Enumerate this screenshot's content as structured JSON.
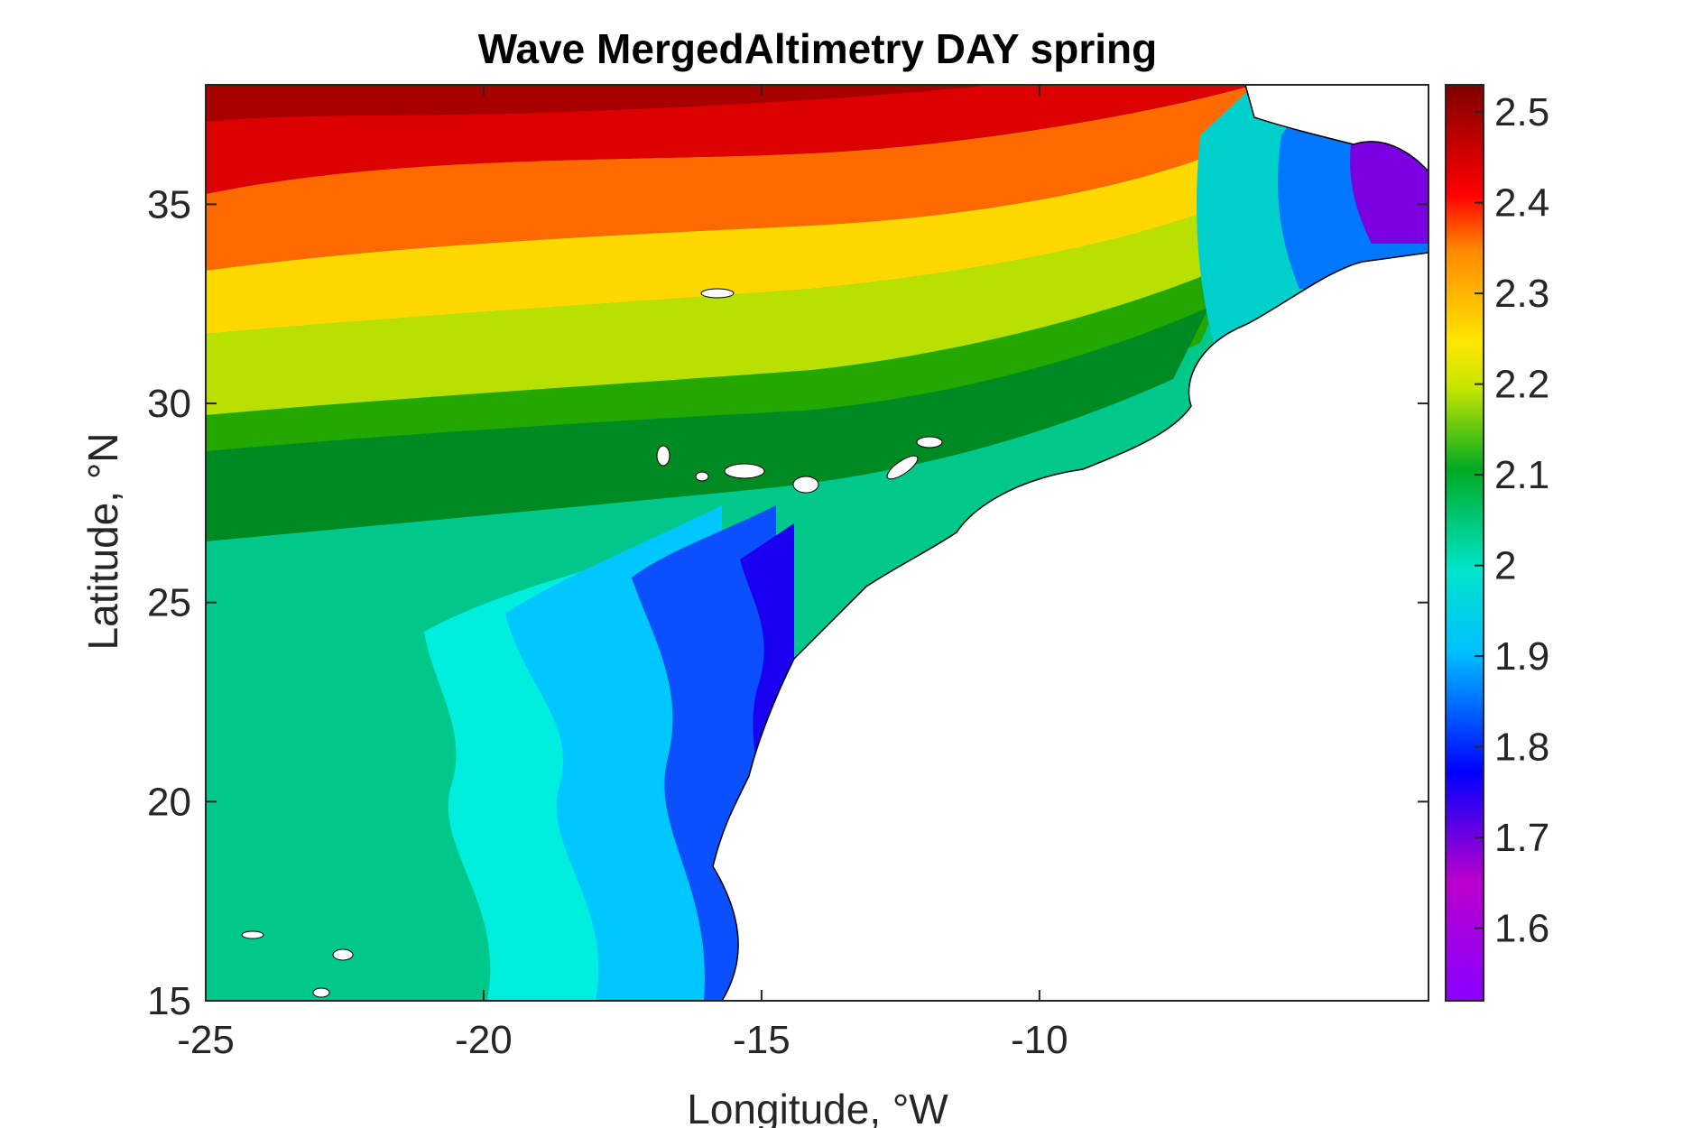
{
  "chart_data": {
    "type": "heatmap",
    "title": "Wave MergedAltimetry DAY spring",
    "xlabel": "Longitude, °W",
    "ylabel": "Latitude, °N",
    "xlim": [
      -25,
      -3
    ],
    "ylim": [
      15,
      38
    ],
    "x_ticks": [
      -25,
      -20,
      -15,
      -10
    ],
    "x_tick_labels": [
      "-25",
      "-20",
      "-15",
      "-10"
    ],
    "y_ticks": [
      15,
      20,
      25,
      30,
      35
    ],
    "y_tick_labels": [
      "15",
      "20",
      "25",
      "30",
      "35"
    ],
    "colorbar": {
      "range": [
        1.52,
        2.53
      ],
      "ticks": [
        1.6,
        1.7,
        1.8,
        1.9,
        2.0,
        2.1,
        2.2,
        2.3,
        2.4,
        2.5
      ],
      "tick_labels": [
        "1.6",
        "1.7",
        "1.8",
        "1.9",
        "2",
        "2.1",
        "2.2",
        "2.3",
        "2.4",
        "2.5"
      ]
    },
    "colormap": [
      [
        0.0,
        "#8800ff"
      ],
      [
        0.13,
        "#bb00cc"
      ],
      [
        0.25,
        "#0000ff"
      ],
      [
        0.38,
        "#00bfff"
      ],
      [
        0.47,
        "#00e5cc"
      ],
      [
        0.58,
        "#00aa22"
      ],
      [
        0.67,
        "#c8e600"
      ],
      [
        0.72,
        "#ffe600"
      ],
      [
        0.82,
        "#ff8800"
      ],
      [
        0.88,
        "#ff0000"
      ],
      [
        1.0,
        "#800000"
      ]
    ],
    "grid": false
  }
}
